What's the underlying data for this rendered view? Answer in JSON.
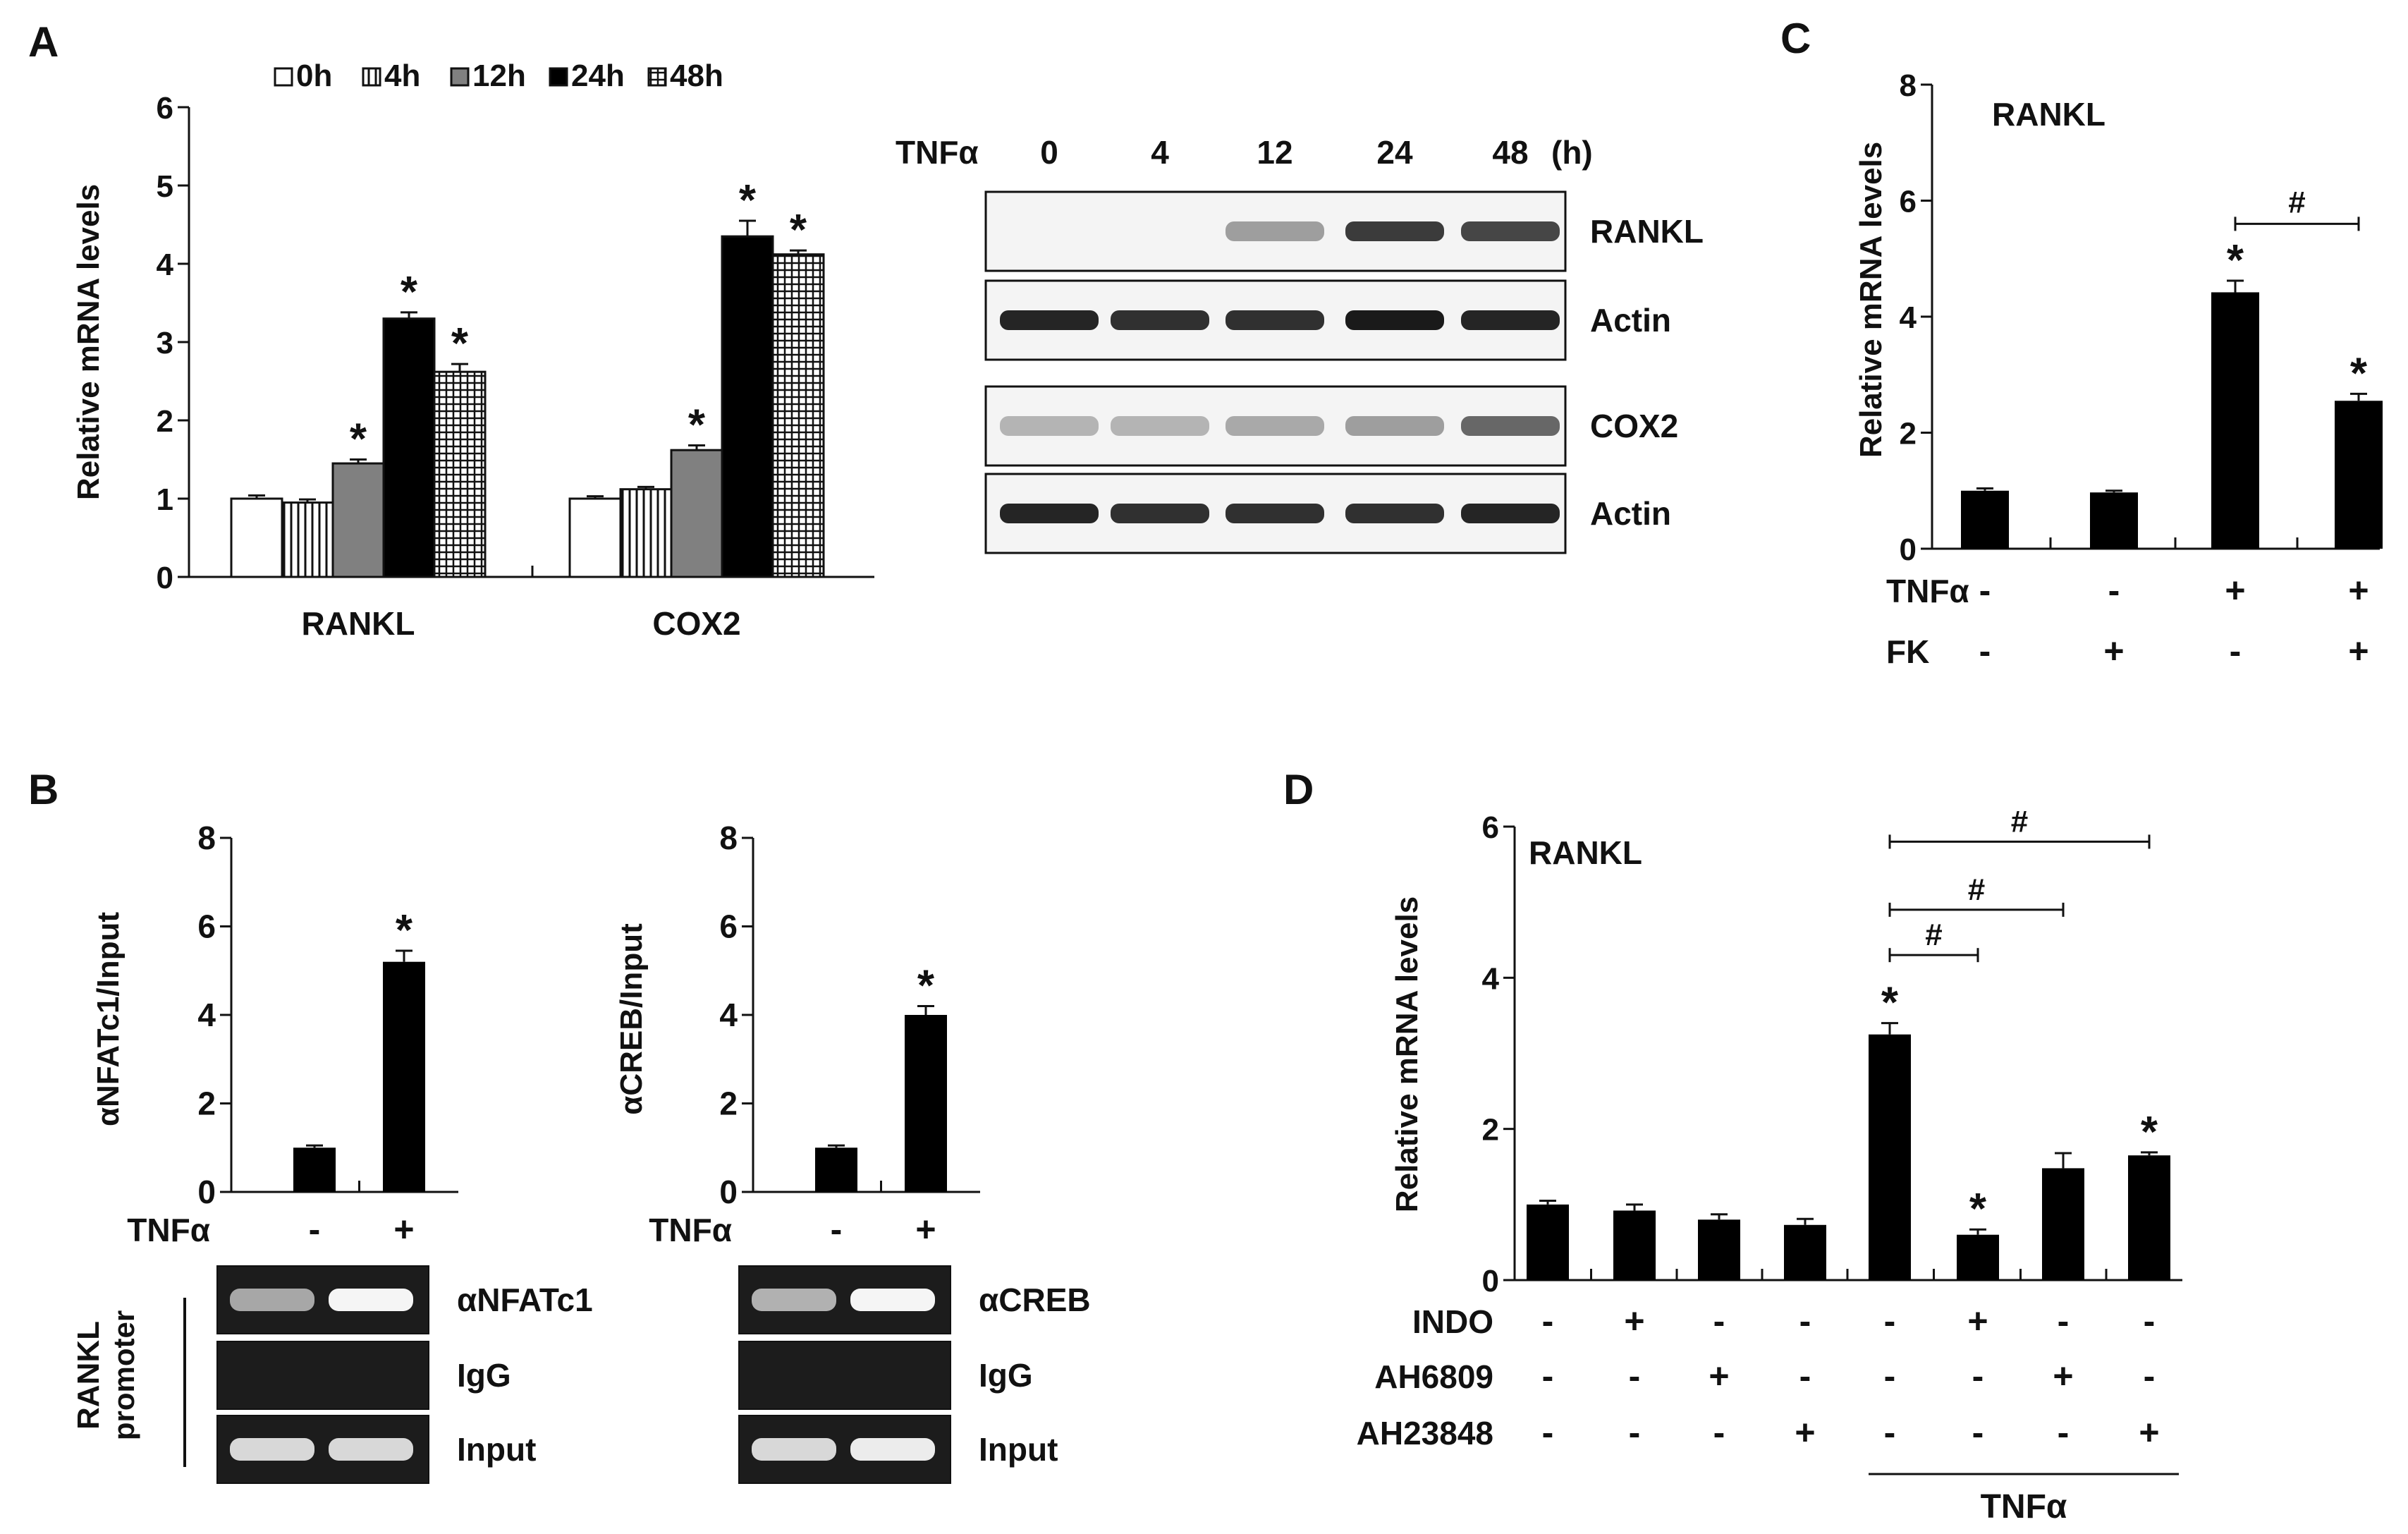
{
  "panels": {
    "A": "A",
    "B": "B",
    "C": "C",
    "D": "D"
  },
  "chart_data": [
    {
      "id": "A_bar",
      "type": "bar",
      "ylabel": "Relative mRNA levels",
      "ylim": [
        0,
        6
      ],
      "yticks": [
        "0",
        "1",
        "2",
        "3",
        "4",
        "5",
        "6"
      ],
      "categories": [
        "RANKL",
        "COX2"
      ],
      "series": [
        {
          "name": "0h",
          "pattern": "white",
          "values": [
            1.0,
            1.0
          ],
          "errors": [
            0.04,
            0.03
          ],
          "sig": [
            "",
            ""
          ]
        },
        {
          "name": "4h",
          "pattern": "vlines",
          "values": [
            0.95,
            1.12
          ],
          "errors": [
            0.04,
            0.03
          ],
          "sig": [
            "",
            ""
          ]
        },
        {
          "name": "12h",
          "pattern": "gray",
          "values": [
            1.45,
            1.62
          ],
          "errors": [
            0.05,
            0.06
          ],
          "sig": [
            "*",
            "*"
          ]
        },
        {
          "name": "24h",
          "pattern": "black",
          "values": [
            3.3,
            4.35
          ],
          "errors": [
            0.08,
            0.2
          ],
          "sig": [
            "*",
            "*"
          ]
        },
        {
          "name": "48h",
          "pattern": "grid",
          "values": [
            2.62,
            4.12
          ],
          "errors": [
            0.1,
            0.05
          ],
          "sig": [
            "*",
            "*"
          ]
        }
      ]
    },
    {
      "id": "A_blot",
      "type": "table",
      "header_label": "TNFα",
      "lanes": [
        "0",
        "4",
        "12",
        "24",
        "48"
      ],
      "unit": "(h)",
      "rows": [
        {
          "label": "RANKL",
          "intensity": [
            0.0,
            0.0,
            0.35,
            0.8,
            0.75
          ]
        },
        {
          "label": "Actin",
          "intensity": [
            0.9,
            0.85,
            0.85,
            0.95,
            0.9
          ]
        },
        {
          "label": "COX2",
          "intensity": [
            0.25,
            0.25,
            0.3,
            0.35,
            0.6
          ]
        },
        {
          "label": "Actin",
          "intensity": [
            0.9,
            0.85,
            0.85,
            0.85,
            0.9
          ]
        }
      ]
    },
    {
      "id": "B1",
      "type": "bar",
      "ylabel": "αNFATc1/Input",
      "ylim": [
        0,
        8
      ],
      "yticks": [
        "0",
        "2",
        "4",
        "6",
        "8"
      ],
      "values": [
        1.0,
        5.2
      ],
      "errors": [
        0.05,
        0.25
      ],
      "sig": [
        "",
        "*"
      ],
      "treatments": [
        {
          "label": "TNFα",
          "values": [
            "-",
            "+"
          ]
        }
      ]
    },
    {
      "id": "B2",
      "type": "bar",
      "ylabel": "αCREB/Input",
      "ylim": [
        0,
        8
      ],
      "yticks": [
        "0",
        "2",
        "4",
        "6",
        "8"
      ],
      "values": [
        1.0,
        4.0
      ],
      "errors": [
        0.05,
        0.2
      ],
      "sig": [
        "",
        "*"
      ],
      "treatments": [
        {
          "label": "TNFα",
          "values": [
            "-",
            "+"
          ]
        }
      ]
    },
    {
      "id": "B_gels",
      "type": "table",
      "side_label_1": "RANKL",
      "side_label_2": "promoter",
      "gel1_rows": [
        {
          "label": "αNFATc1",
          "intensity": [
            0.55,
            0.95
          ]
        },
        {
          "label": "IgG",
          "intensity": [
            0.0,
            0.0
          ]
        },
        {
          "label": "Input",
          "intensity": [
            0.8,
            0.8
          ]
        }
      ],
      "gel2_rows": [
        {
          "label": "αCREB",
          "intensity": [
            0.6,
            0.95
          ]
        },
        {
          "label": "IgG",
          "intensity": [
            0.0,
            0.0
          ]
        },
        {
          "label": "Input",
          "intensity": [
            0.8,
            0.9
          ]
        }
      ]
    },
    {
      "id": "C",
      "type": "bar",
      "inner_title": "RANKL",
      "ylabel": "Relative mRNA levels",
      "ylim": [
        0,
        8
      ],
      "yticks": [
        "0",
        "2",
        "4",
        "6",
        "8"
      ],
      "values": [
        1.0,
        0.97,
        4.42,
        2.55
      ],
      "errors": [
        0.04,
        0.03,
        0.2,
        0.12
      ],
      "sig": [
        "",
        "",
        "*",
        "*"
      ],
      "brackets": [
        {
          "from": 2,
          "to": 3,
          "label": "#",
          "level": 5.6
        }
      ],
      "treatments": [
        {
          "label": "TNFα",
          "values": [
            "-",
            "-",
            "+",
            "+"
          ]
        },
        {
          "label": "FK",
          "values": [
            "-",
            "+",
            "-",
            "+"
          ]
        }
      ]
    },
    {
      "id": "D",
      "type": "bar",
      "inner_title": "RANKL",
      "ylabel": "Relative mRNA levels",
      "ylim": [
        0,
        6
      ],
      "yticks": [
        "0",
        "2",
        "4",
        "6"
      ],
      "values": [
        1.0,
        0.92,
        0.8,
        0.73,
        3.25,
        0.6,
        1.48,
        1.65
      ],
      "errors": [
        0.05,
        0.08,
        0.07,
        0.08,
        0.15,
        0.07,
        0.2,
        0.04
      ],
      "sig": [
        "",
        "",
        "",
        "",
        "*",
        "*",
        "",
        "*"
      ],
      "brackets": [
        {
          "from": 4,
          "to": 5,
          "label": "#",
          "level": 4.3
        },
        {
          "from": 4,
          "to": 6,
          "label": "#",
          "level": 4.9
        },
        {
          "from": 4,
          "to": 7,
          "label": "#",
          "level": 5.8
        }
      ],
      "treatments": [
        {
          "label": "INDO",
          "values": [
            "-",
            "+",
            "-",
            "-",
            "-",
            "+",
            "-",
            "-"
          ]
        },
        {
          "label": "AH6809",
          "values": [
            "-",
            "-",
            "+",
            "-",
            "-",
            "-",
            "+",
            "-"
          ]
        },
        {
          "label": "AH23848",
          "values": [
            "-",
            "-",
            "-",
            "+",
            "-",
            "-",
            "-",
            "+"
          ]
        }
      ],
      "group_label": "TNFα"
    }
  ]
}
